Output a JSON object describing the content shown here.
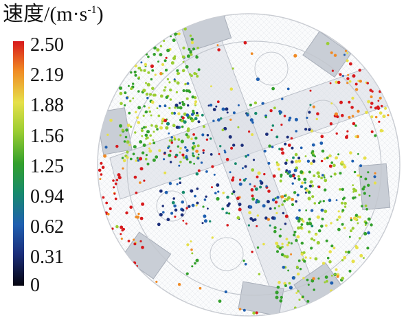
{
  "legend": {
    "title": "速度/(m·s",
    "title_sup": "-1",
    "title_close": ")",
    "ticks": [
      "2.50",
      "2.19",
      "1.88",
      "1.56",
      "1.25",
      "0.94",
      "0.62",
      "0.31",
      "0"
    ],
    "colormap": [
      "#d7191c",
      "#f08a24",
      "#e6e04a",
      "#9acd32",
      "#33a02c",
      "#178a6c",
      "#1f5fb0",
      "#1b2e7a",
      "#050510"
    ]
  }
}
